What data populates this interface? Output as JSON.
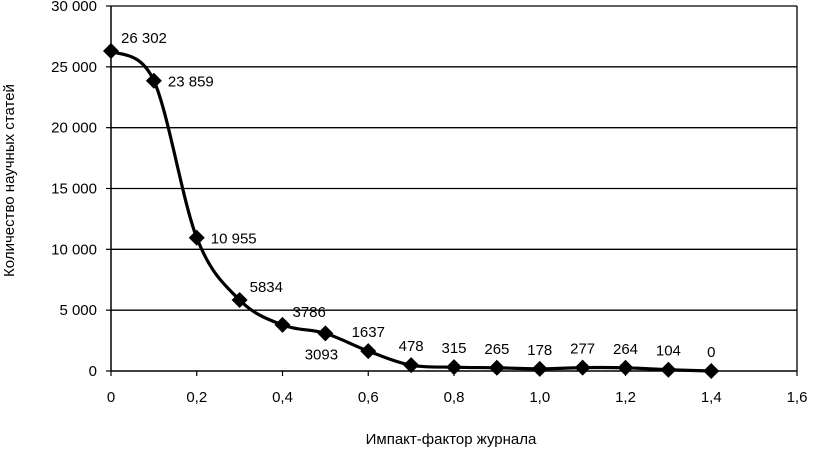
{
  "chart_data": {
    "type": "line",
    "xlabel": "Импакт-фактор журнала",
    "ylabel": "Количество научных статей",
    "xlim": [
      0,
      1.6
    ],
    "ylim": [
      0,
      30000
    ],
    "grid": "horizontal",
    "x_ticks": [
      {
        "value": 0,
        "label": "0"
      },
      {
        "value": 0.2,
        "label": "0,2"
      },
      {
        "value": 0.4,
        "label": "0,4"
      },
      {
        "value": 0.6,
        "label": "0,6"
      },
      {
        "value": 0.8,
        "label": "0,8"
      },
      {
        "value": 1.0,
        "label": "1,0"
      },
      {
        "value": 1.2,
        "label": "1,2"
      },
      {
        "value": 1.4,
        "label": "1,4"
      },
      {
        "value": 1.6,
        "label": "1,6"
      }
    ],
    "y_ticks": [
      {
        "value": 0,
        "label": "0"
      },
      {
        "value": 5000,
        "label": "5 000"
      },
      {
        "value": 10000,
        "label": "10 000"
      },
      {
        "value": 15000,
        "label": "15 000"
      },
      {
        "value": 20000,
        "label": "20 000"
      },
      {
        "value": 25000,
        "label": "25 000"
      },
      {
        "value": 30000,
        "label": "30 000"
      }
    ],
    "series": [
      {
        "marker": "diamond",
        "color": "#000000",
        "x": [
          0,
          0.1,
          0.2,
          0.3,
          0.4,
          0.5,
          0.6,
          0.7,
          0.8,
          0.9,
          1.0,
          1.1,
          1.2,
          1.3,
          1.4
        ],
        "values": [
          26302,
          23859,
          10955,
          5834,
          3786,
          3093,
          1637,
          478,
          315,
          265,
          178,
          277,
          264,
          104,
          0
        ],
        "data_labels": [
          "26 302",
          "23 859",
          "10 955",
          "5834",
          "3786",
          "3093",
          "1637",
          "478",
          "315",
          "265",
          "178",
          "277",
          "264",
          "104",
          "0"
        ],
        "label_positions": [
          "above-right",
          "right",
          "right",
          "above-right",
          "above-right",
          "below-left",
          "above",
          "above",
          "above",
          "above",
          "above",
          "above",
          "above",
          "above",
          "above"
        ]
      }
    ]
  }
}
